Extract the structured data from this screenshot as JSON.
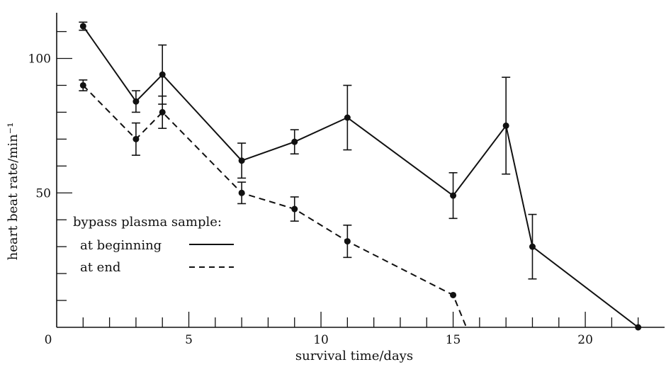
{
  "chart_data": {
    "type": "line",
    "title": "",
    "xlabel": "survival time/days",
    "ylabel": "heart beat rate/min⁻¹",
    "xlim": [
      0,
      23
    ],
    "ylim": [
      0,
      117
    ],
    "xticks_major": [
      0,
      5,
      10,
      15,
      20
    ],
    "xtick_labels": [
      "0",
      "5",
      "10",
      "15",
      "20"
    ],
    "xticks_minor": [
      1,
      2,
      3,
      4,
      6,
      7,
      8,
      9,
      11,
      12,
      13,
      14,
      16,
      17,
      18,
      19,
      21,
      22
    ],
    "yticks_major": [
      50,
      100
    ],
    "ytick_labels": [
      "50",
      "100"
    ],
    "yticks_minor": [
      10,
      20,
      30,
      40,
      60,
      70,
      80,
      90,
      110
    ],
    "grid": false,
    "legend": {
      "title": "bypass plasma sample:",
      "placement": "lower-left",
      "entries": [
        "at beginning",
        "at end"
      ]
    },
    "series": [
      {
        "name": "at beginning",
        "linestyle": "solid",
        "color": "#111111",
        "points": [
          {
            "x": 1,
            "y": 112,
            "err": 1.5
          },
          {
            "x": 3,
            "y": 84,
            "err": 4
          },
          {
            "x": 4,
            "y": 94,
            "err": 11
          },
          {
            "x": 7,
            "y": 62,
            "err": 6.5
          },
          {
            "x": 9,
            "y": 69,
            "err": 4.5
          },
          {
            "x": 11,
            "y": 78,
            "err": 12
          },
          {
            "x": 15,
            "y": 49,
            "err": 8.5
          },
          {
            "x": 17,
            "y": 75,
            "err": 18
          },
          {
            "x": 18,
            "y": 30,
            "err": 12
          }
        ],
        "tail": {
          "x": 22,
          "y": 0
        }
      },
      {
        "name": "at end",
        "linestyle": "dashed",
        "color": "#111111",
        "points": [
          {
            "x": 1,
            "y": 90,
            "err": 2
          },
          {
            "x": 3,
            "y": 70,
            "err": 6
          },
          {
            "x": 4,
            "y": 80,
            "err": 6
          },
          {
            "x": 7,
            "y": 50,
            "err": 4
          },
          {
            "x": 9,
            "y": 44,
            "err": 4.5
          },
          {
            "x": 11,
            "y": 32,
            "err": 6
          },
          {
            "x": 15,
            "y": 12,
            "err": 0
          }
        ],
        "tail": {
          "x": 15.5,
          "y": 0
        }
      }
    ]
  }
}
